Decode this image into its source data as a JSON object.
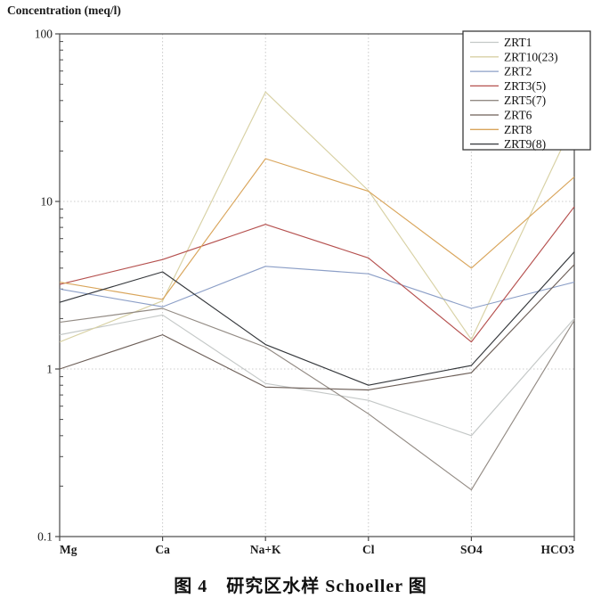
{
  "figure": {
    "y_axis_title": "Concentration (meq/l)",
    "caption": "图 4　研究区水样 Schoeller 图"
  },
  "chart_data": {
    "type": "line",
    "title": "Schoeller diagram of water samples",
    "xlabel": "",
    "ylabel": "Concentration (meq/l)",
    "y_scale": "log",
    "ylim": [
      0.1,
      100
    ],
    "y_tick_labels": [
      "100",
      "10",
      "1",
      "0.1"
    ],
    "y_tick_values": [
      100,
      10,
      1,
      0.1
    ],
    "grid_values": [
      10,
      1
    ],
    "grid": "dotted horizontal at decades, dotted vertical at each category",
    "legend_position": "top-right",
    "categories": [
      "Mg",
      "Ca",
      "Na+K",
      "Cl",
      "SO4",
      "HCO3"
    ],
    "series": [
      {
        "name": "ZRT1",
        "color": "#c4c8c7",
        "values": [
          1.6,
          2.1,
          0.82,
          0.65,
          0.4,
          2.0
        ]
      },
      {
        "name": "ZRT10(23)",
        "color": "#d8d1a4",
        "values": [
          1.45,
          2.55,
          45,
          11.6,
          1.5,
          30
        ]
      },
      {
        "name": "ZRT2",
        "color": "#8c9fc7",
        "values": [
          3.0,
          2.35,
          4.1,
          3.7,
          2.3,
          3.3
        ]
      },
      {
        "name": "ZRT3(5)",
        "color": "#b5504e",
        "values": [
          3.2,
          4.5,
          7.3,
          4.6,
          1.45,
          9.3
        ]
      },
      {
        "name": "ZRT5(7)",
        "color": "#938b84",
        "values": [
          1.9,
          2.3,
          1.35,
          0.54,
          0.19,
          1.95
        ]
      },
      {
        "name": "ZRT6",
        "color": "#6d5f58",
        "values": [
          1.0,
          1.6,
          0.78,
          0.75,
          0.95,
          4.2
        ]
      },
      {
        "name": "ZRT8",
        "color": "#d9a55b",
        "values": [
          3.3,
          2.6,
          18,
          11.5,
          4.0,
          14
        ]
      },
      {
        "name": "ZRT9(8)",
        "color": "#34373b",
        "values": [
          2.5,
          3.8,
          1.4,
          0.8,
          1.05,
          5.0
        ]
      }
    ]
  }
}
